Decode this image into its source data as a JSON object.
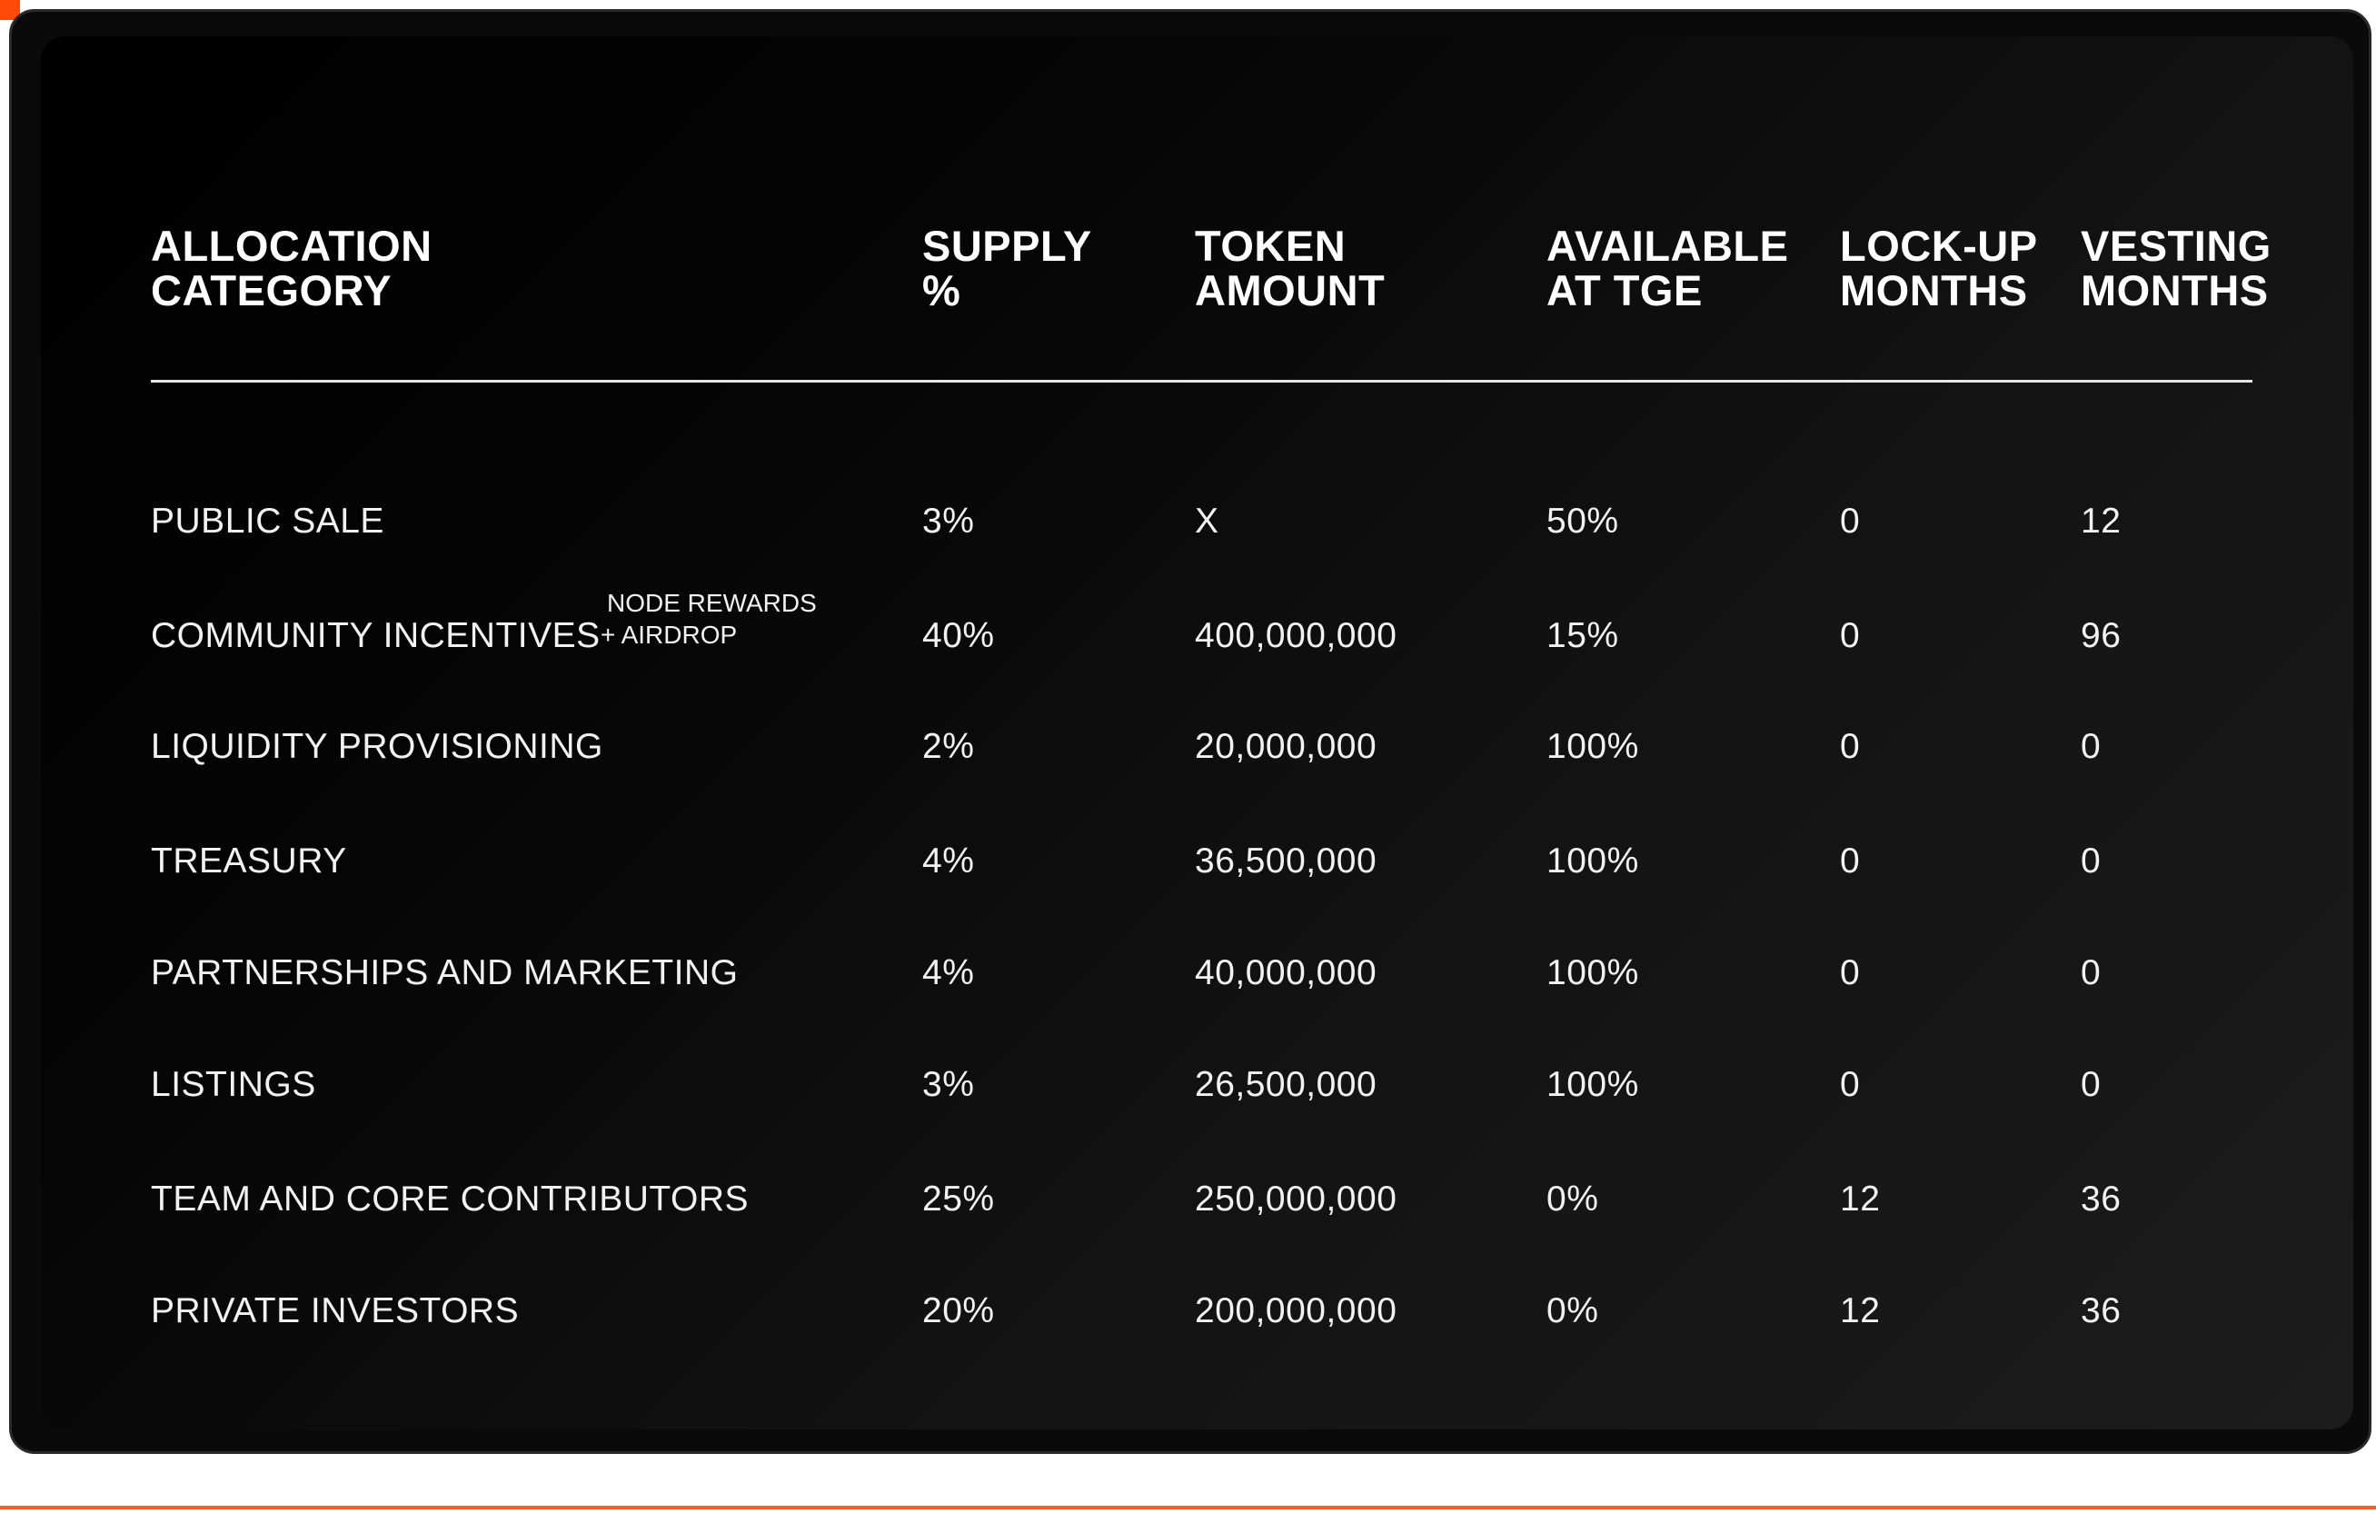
{
  "table": {
    "headers": [
      {
        "line1": "ALLOCATION",
        "line2": "CATEGORY"
      },
      {
        "line1": "SUPPLY",
        "line2": "%"
      },
      {
        "line1": "TOKEN",
        "line2": "AMOUNT"
      },
      {
        "line1": "AVAILABLE",
        "line2": "AT TGE"
      },
      {
        "line1": "LOCK-UP",
        "line2": "MONTHS"
      },
      {
        "line1": "VESTING",
        "line2": "MONTHS"
      }
    ],
    "rows": [
      {
        "category": "PUBLIC SALE",
        "supply": "3%",
        "amount": "X",
        "tge": "50%",
        "lockup": "0",
        "vesting": "12"
      },
      {
        "category": "COMMUNITY INCENTIVES",
        "note_line1": "NODE REWARDS",
        "note_line2": "+ AIRDROP",
        "supply": "40%",
        "amount": "400,000,000",
        "tge": "15%",
        "lockup": "0",
        "vesting": "96"
      },
      {
        "category": "LIQUIDITY PROVISIONING",
        "supply": "2%",
        "amount": "20,000,000",
        "tge": "100%",
        "lockup": "0",
        "vesting": "0"
      },
      {
        "category": "TREASURY",
        "supply": "4%",
        "amount": "36,500,000",
        "tge": "100%",
        "lockup": "0",
        "vesting": "0"
      },
      {
        "category": "PARTNERSHIPS AND MARKETING",
        "supply": "4%",
        "amount": "40,000,000",
        "tge": "100%",
        "lockup": "0",
        "vesting": "0"
      },
      {
        "category": "LISTINGS",
        "supply": "3%",
        "amount": "26,500,000",
        "tge": "100%",
        "lockup": "0",
        "vesting": "0"
      },
      {
        "category": "TEAM AND CORE CONTRIBUTORS",
        "supply": "25%",
        "amount": "250,000,000",
        "tge": "0%",
        "lockup": "12",
        "vesting": "36"
      },
      {
        "category": "PRIVATE INVESTORS",
        "supply": "20%",
        "amount": "200,000,000",
        "tge": "0%",
        "lockup": "12",
        "vesting": "36"
      }
    ]
  },
  "colors": {
    "accent": "#ff4a0a",
    "panel_dark": "#000000",
    "panel_light": "#1c1c1c",
    "text": "#f2f2f2"
  }
}
